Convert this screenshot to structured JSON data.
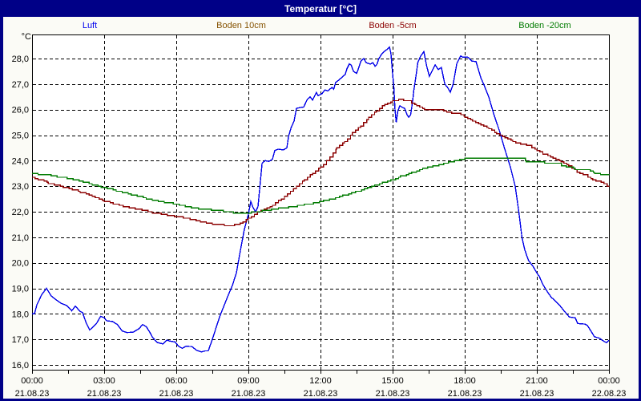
{
  "window": {
    "title": "Temperatur [°C]"
  },
  "colors": {
    "frame": "#000087",
    "background": "#FBFBF6",
    "plot_background": "#FFFFFF",
    "grid": "#000000",
    "title_text": "#FFFFFF",
    "axis_text": "#000000"
  },
  "legend": [
    {
      "label": "Luft",
      "color": "#0000EE"
    },
    {
      "label": "Boden 10cm",
      "color": "#855200"
    },
    {
      "label": "Boden -5cm",
      "color": "#8B0000"
    },
    {
      "label": "Boden -20cm",
      "color": "#007B00"
    }
  ],
  "chart_data": {
    "type": "line",
    "title": "Temperatur [°C]",
    "ylabel": "°C",
    "ylim": [
      15.8,
      28.95
    ],
    "xlim_hours": [
      0,
      24
    ],
    "grid": true,
    "legend_position": "top",
    "y_ticks": [
      "16,0",
      "17,0",
      "18,0",
      "19,0",
      "20,0",
      "21,0",
      "22,0",
      "23,0",
      "24,0",
      "25,0",
      "26,0",
      "27,0",
      "28,0"
    ],
    "x_ticks": [
      {
        "time": "00:00",
        "date": "21.08.23"
      },
      {
        "time": "03:00",
        "date": "21.08.23"
      },
      {
        "time": "06:00",
        "date": "21.08.23"
      },
      {
        "time": "09:00",
        "date": "21.08.23"
      },
      {
        "time": "12:00",
        "date": "21.08.23"
      },
      {
        "time": "15:00",
        "date": "21.08.23"
      },
      {
        "time": "18:00",
        "date": "21.08.23"
      },
      {
        "time": "21:00",
        "date": "21.08.23"
      },
      {
        "time": "00:00",
        "date": "22.08.23"
      }
    ],
    "series": [
      {
        "name": "Luft",
        "color": "#0000E8",
        "style": "line",
        "points": [
          [
            0,
            18.0
          ],
          [
            0.1,
            18.0
          ],
          [
            0.2,
            18.35
          ],
          [
            0.4,
            18.75
          ],
          [
            0.6,
            19.0
          ],
          [
            0.8,
            18.7
          ],
          [
            1.0,
            18.55
          ],
          [
            1.2,
            18.42
          ],
          [
            1.45,
            18.32
          ],
          [
            1.65,
            18.12
          ],
          [
            1.8,
            18.3
          ],
          [
            2.0,
            18.1
          ],
          [
            2.1,
            18.05
          ],
          [
            2.25,
            17.65
          ],
          [
            2.4,
            17.37
          ],
          [
            2.55,
            17.5
          ],
          [
            2.7,
            17.65
          ],
          [
            2.85,
            17.9
          ],
          [
            3.0,
            17.85
          ],
          [
            3.1,
            17.73
          ],
          [
            3.35,
            17.7
          ],
          [
            3.55,
            17.58
          ],
          [
            3.75,
            17.33
          ],
          [
            3.95,
            17.27
          ],
          [
            4.2,
            17.28
          ],
          [
            4.45,
            17.42
          ],
          [
            4.6,
            17.58
          ],
          [
            4.75,
            17.5
          ],
          [
            4.9,
            17.28
          ],
          [
            5.0,
            17.1
          ],
          [
            5.2,
            16.88
          ],
          [
            5.45,
            16.82
          ],
          [
            5.6,
            16.97
          ],
          [
            5.75,
            16.93
          ],
          [
            5.95,
            16.9
          ],
          [
            6.1,
            16.73
          ],
          [
            6.25,
            16.65
          ],
          [
            6.4,
            16.73
          ],
          [
            6.65,
            16.72
          ],
          [
            6.85,
            16.57
          ],
          [
            7.05,
            16.51
          ],
          [
            7.2,
            16.55
          ],
          [
            7.33,
            16.55
          ],
          [
            7.5,
            17.0
          ],
          [
            7.67,
            17.5
          ],
          [
            7.83,
            17.95
          ],
          [
            8.0,
            18.35
          ],
          [
            8.17,
            18.75
          ],
          [
            8.33,
            19.1
          ],
          [
            8.5,
            19.6
          ],
          [
            8.67,
            20.5
          ],
          [
            8.83,
            21.3
          ],
          [
            9.0,
            21.9
          ],
          [
            9.1,
            22.4
          ],
          [
            9.2,
            22.15
          ],
          [
            9.3,
            22.0
          ],
          [
            9.4,
            22.2
          ],
          [
            9.5,
            23.2
          ],
          [
            9.57,
            23.9
          ],
          [
            9.7,
            24.0
          ],
          [
            9.85,
            23.97
          ],
          [
            10.0,
            24.05
          ],
          [
            10.1,
            24.4
          ],
          [
            10.25,
            24.45
          ],
          [
            10.45,
            24.42
          ],
          [
            10.6,
            24.5
          ],
          [
            10.67,
            24.95
          ],
          [
            10.78,
            25.3
          ],
          [
            10.9,
            25.55
          ],
          [
            11.0,
            26.05
          ],
          [
            11.15,
            26.08
          ],
          [
            11.3,
            26.1
          ],
          [
            11.45,
            26.4
          ],
          [
            11.57,
            26.5
          ],
          [
            11.67,
            26.37
          ],
          [
            11.83,
            26.67
          ],
          [
            11.9,
            26.55
          ],
          [
            12.07,
            26.63
          ],
          [
            12.18,
            26.77
          ],
          [
            12.3,
            26.73
          ],
          [
            12.48,
            26.87
          ],
          [
            12.55,
            26.8
          ],
          [
            12.63,
            27.06
          ],
          [
            12.75,
            27.15
          ],
          [
            12.9,
            27.27
          ],
          [
            13.03,
            27.38
          ],
          [
            13.1,
            27.6
          ],
          [
            13.2,
            27.79
          ],
          [
            13.28,
            27.74
          ],
          [
            13.37,
            27.5
          ],
          [
            13.5,
            27.42
          ],
          [
            13.57,
            27.58
          ],
          [
            13.68,
            27.89
          ],
          [
            13.8,
            28.0
          ],
          [
            13.9,
            27.84
          ],
          [
            14.07,
            27.78
          ],
          [
            14.18,
            27.84
          ],
          [
            14.27,
            27.7
          ],
          [
            14.35,
            27.78
          ],
          [
            14.43,
            28.0
          ],
          [
            14.55,
            28.18
          ],
          [
            14.67,
            28.29
          ],
          [
            14.77,
            28.36
          ],
          [
            14.87,
            28.45
          ],
          [
            14.93,
            28.2
          ],
          [
            15.0,
            27.4
          ],
          [
            15.05,
            26.9
          ],
          [
            15.1,
            26.0
          ],
          [
            15.15,
            25.5
          ],
          [
            15.22,
            25.95
          ],
          [
            15.3,
            26.15
          ],
          [
            15.42,
            26.08
          ],
          [
            15.5,
            26.05
          ],
          [
            15.6,
            25.8
          ],
          [
            15.67,
            25.7
          ],
          [
            15.75,
            25.8
          ],
          [
            15.83,
            26.3
          ],
          [
            15.88,
            26.74
          ],
          [
            15.97,
            27.3
          ],
          [
            16.05,
            27.85
          ],
          [
            16.17,
            28.1
          ],
          [
            16.3,
            28.27
          ],
          [
            16.42,
            27.7
          ],
          [
            16.53,
            27.3
          ],
          [
            16.77,
            27.75
          ],
          [
            16.9,
            27.57
          ],
          [
            17.03,
            27.65
          ],
          [
            17.17,
            27.0
          ],
          [
            17.3,
            26.85
          ],
          [
            17.4,
            26.68
          ],
          [
            17.52,
            27.0
          ],
          [
            17.67,
            27.8
          ],
          [
            17.83,
            28.1
          ],
          [
            17.93,
            28.05
          ],
          [
            18.13,
            28.05
          ],
          [
            18.3,
            27.9
          ],
          [
            18.47,
            27.88
          ],
          [
            18.67,
            27.25
          ],
          [
            18.83,
            26.9
          ],
          [
            19.0,
            26.5
          ],
          [
            19.2,
            25.85
          ],
          [
            19.45,
            25.15
          ],
          [
            19.65,
            24.5
          ],
          [
            19.9,
            23.75
          ],
          [
            20.1,
            23.0
          ],
          [
            20.25,
            22.0
          ],
          [
            20.38,
            21.0
          ],
          [
            20.5,
            20.5
          ],
          [
            20.65,
            20.1
          ],
          [
            20.85,
            19.85
          ],
          [
            21.0,
            19.6
          ],
          [
            21.1,
            19.47
          ],
          [
            21.25,
            19.15
          ],
          [
            21.45,
            18.85
          ],
          [
            21.6,
            18.65
          ],
          [
            21.75,
            18.52
          ],
          [
            21.95,
            18.33
          ],
          [
            22.15,
            18.1
          ],
          [
            22.35,
            17.88
          ],
          [
            22.6,
            17.84
          ],
          [
            22.7,
            17.62
          ],
          [
            23.0,
            17.6
          ],
          [
            23.1,
            17.55
          ],
          [
            23.25,
            17.33
          ],
          [
            23.4,
            17.1
          ],
          [
            23.6,
            17.05
          ],
          [
            23.75,
            16.95
          ],
          [
            23.9,
            16.87
          ],
          [
            24.0,
            16.97
          ]
        ]
      },
      {
        "name": "Boden 10cm",
        "color": "#855200",
        "style": "step",
        "points": []
      },
      {
        "name": "Boden -5cm",
        "color": "#8B0000",
        "style": "step",
        "points": [
          [
            0,
            23.36
          ],
          [
            0.67,
            23.12
          ],
          [
            1.17,
            23.0
          ],
          [
            2,
            22.77
          ],
          [
            2.67,
            22.54
          ],
          [
            3,
            22.42
          ],
          [
            3.67,
            22.23
          ],
          [
            4.33,
            22.1
          ],
          [
            5,
            21.97
          ],
          [
            5.67,
            21.86
          ],
          [
            6.33,
            21.76
          ],
          [
            7,
            21.62
          ],
          [
            7.5,
            21.52
          ],
          [
            8,
            21.47
          ],
          [
            8.3,
            21.45
          ],
          [
            8.53,
            21.5
          ],
          [
            9,
            21.73
          ],
          [
            9.4,
            22.0
          ],
          [
            10,
            22.25
          ],
          [
            10.5,
            22.6
          ],
          [
            11,
            23.0
          ],
          [
            11.33,
            23.25
          ],
          [
            11.67,
            23.5
          ],
          [
            12,
            23.75
          ],
          [
            12.27,
            24.0
          ],
          [
            12.67,
            24.48
          ],
          [
            13,
            24.74
          ],
          [
            13.33,
            25.08
          ],
          [
            13.67,
            25.37
          ],
          [
            14,
            25.69
          ],
          [
            14.33,
            25.95
          ],
          [
            14.67,
            26.19
          ],
          [
            15,
            26.33
          ],
          [
            15.33,
            26.4
          ],
          [
            15.67,
            26.33
          ],
          [
            16,
            26.16
          ],
          [
            16.33,
            26.02
          ],
          [
            17,
            26.0
          ],
          [
            17.33,
            25.88
          ],
          [
            17.72,
            25.84
          ],
          [
            18,
            25.72
          ],
          [
            18.33,
            25.54
          ],
          [
            18.67,
            25.4
          ],
          [
            19,
            25.27
          ],
          [
            19.33,
            25.04
          ],
          [
            19.67,
            24.9
          ],
          [
            20,
            24.74
          ],
          [
            20.33,
            24.66
          ],
          [
            20.67,
            24.59
          ],
          [
            21,
            24.38
          ],
          [
            21.33,
            24.24
          ],
          [
            21.67,
            24.1
          ],
          [
            22,
            23.96
          ],
          [
            22.33,
            23.8
          ],
          [
            22.67,
            23.57
          ],
          [
            23,
            23.44
          ],
          [
            23.33,
            23.25
          ],
          [
            23.67,
            23.16
          ],
          [
            24,
            22.98
          ]
        ]
      },
      {
        "name": "Boden -20cm",
        "color": "#007B00",
        "style": "step",
        "points": [
          [
            0,
            23.5
          ],
          [
            0.67,
            23.43
          ],
          [
            1.33,
            23.33
          ],
          [
            2,
            23.19
          ],
          [
            3,
            22.94
          ],
          [
            4,
            22.7
          ],
          [
            5,
            22.46
          ],
          [
            6,
            22.28
          ],
          [
            6.67,
            22.15
          ],
          [
            7.33,
            22.08
          ],
          [
            8,
            22.02
          ],
          [
            8.4,
            21.97
          ],
          [
            9,
            21.96
          ],
          [
            9.33,
            22.0
          ],
          [
            10,
            22.1
          ],
          [
            10.67,
            22.18
          ],
          [
            11.33,
            22.28
          ],
          [
            12,
            22.4
          ],
          [
            12.67,
            22.56
          ],
          [
            13.33,
            22.74
          ],
          [
            14,
            22.95
          ],
          [
            14.33,
            23.05
          ],
          [
            14.67,
            23.17
          ],
          [
            15,
            23.26
          ],
          [
            15.33,
            23.38
          ],
          [
            15.67,
            23.49
          ],
          [
            16,
            23.6
          ],
          [
            16.33,
            23.7
          ],
          [
            16.67,
            23.78
          ],
          [
            17,
            23.86
          ],
          [
            17.33,
            23.94
          ],
          [
            17.67,
            24.02
          ],
          [
            18,
            24.08
          ],
          [
            18.4,
            24.1
          ],
          [
            20.4,
            24.1
          ],
          [
            20.55,
            23.97
          ],
          [
            21.2,
            23.96
          ],
          [
            21.4,
            23.9
          ],
          [
            21.9,
            23.88
          ],
          [
            22.1,
            23.78
          ],
          [
            22.4,
            23.74
          ],
          [
            22.6,
            23.65
          ],
          [
            23.1,
            23.63
          ],
          [
            23.4,
            23.52
          ],
          [
            23.7,
            23.45
          ],
          [
            23.93,
            23.44
          ],
          [
            24,
            23.47
          ]
        ]
      }
    ]
  }
}
